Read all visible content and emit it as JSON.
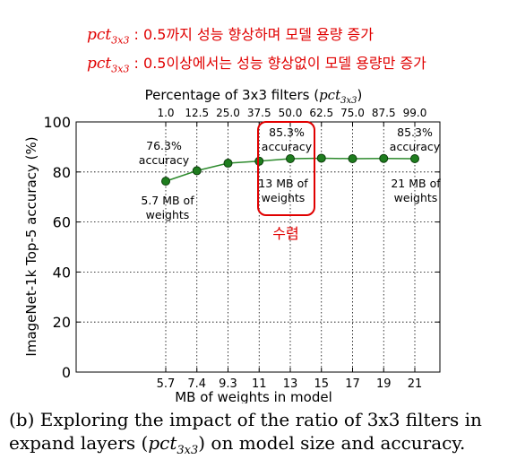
{
  "annotations": {
    "line1": {
      "var": "pct",
      "sub": "3x3",
      "text": " : 0.5까지 성능 향상하며 모델 용량 증가"
    },
    "line2": {
      "var": "pct",
      "sub": "3x3",
      "text": " : 0.5이상에서는 성능 향상없이 모델 용량만 증가"
    },
    "highlight_label": "수렴",
    "highlight_color": "#e00000"
  },
  "caption": {
    "pre": "(b) Exploring the impact of the ratio of 3x3 filters in expand layers (",
    "var": "pct",
    "sub": "3x3",
    "post": ") on model size and accuracy."
  },
  "chart_data": {
    "type": "line",
    "title_prefix": "Percentage of 3x3 filters (",
    "title_var": "pct",
    "title_sub": "3x3",
    "title_suffix": ")",
    "xlabel": "MB of weights in model",
    "ylabel": "ImageNet-1k Top-5 accuracy (%)",
    "x": [
      5.7,
      7.4,
      9.3,
      11,
      13,
      15,
      17,
      19,
      21
    ],
    "x_tick_labels": [
      "5.7",
      "7.4",
      "9.3",
      "11",
      "13",
      "15",
      "17",
      "19",
      "21"
    ],
    "top_tick_labels": [
      "1.0",
      "12.5",
      "25.0",
      "37.5",
      "50.0",
      "62.5",
      "75.0",
      "87.5",
      "99.0"
    ],
    "y": [
      76.3,
      80.5,
      83.5,
      84.3,
      85.3,
      85.5,
      85.3,
      85.4,
      85.3
    ],
    "ylim": [
      0,
      100
    ],
    "y_ticks": [
      0,
      20,
      40,
      60,
      80,
      100
    ],
    "grid": true,
    "line_color": "#2e8b2e",
    "marker_color": "#1e7d1e",
    "labels": [
      {
        "id": "acc-first",
        "lines": [
          "76.3%",
          "accuracy"
        ]
      },
      {
        "id": "size-first",
        "lines": [
          "5.7 MB of",
          "weights"
        ]
      },
      {
        "id": "acc-mid",
        "lines": [
          "85.3%",
          "accuracy"
        ]
      },
      {
        "id": "size-mid",
        "lines": [
          "13 MB of",
          "weights"
        ]
      },
      {
        "id": "acc-last",
        "lines": [
          "85.3%",
          "accuracy"
        ]
      },
      {
        "id": "size-last",
        "lines": [
          "21 MB of",
          "weights"
        ]
      }
    ]
  }
}
